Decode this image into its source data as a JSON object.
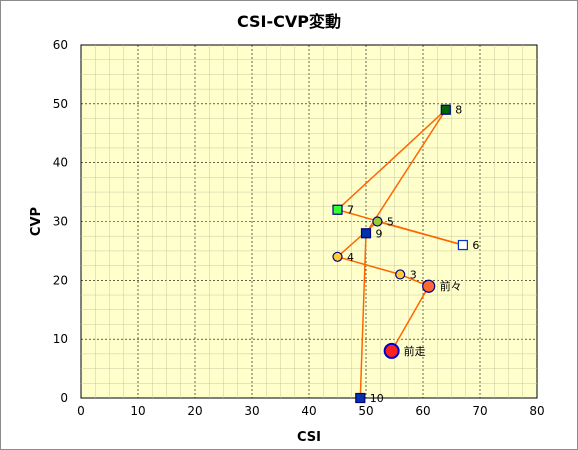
{
  "chart_data": {
    "type": "scatter",
    "title": "CSI-CVP変動",
    "xlabel": "CSI",
    "ylabel": "CVP",
    "xlim": [
      0,
      80
    ],
    "ylim": [
      0,
      60
    ],
    "xticks": [
      0,
      10,
      20,
      30,
      40,
      50,
      60,
      70,
      80
    ],
    "yticks": [
      0,
      10,
      20,
      30,
      40,
      50,
      60
    ],
    "grid": true,
    "plot_background": "#ffffcc",
    "line_color": "#ff6600",
    "points": [
      {
        "label": "前走",
        "x": 54.5,
        "y": 8,
        "shape": "circle",
        "size": "large",
        "fill": "#ff2020",
        "stroke": "#0000cc"
      },
      {
        "label": "前々",
        "x": 61,
        "y": 19,
        "shape": "circle",
        "size": "medium",
        "fill": "#ff6633",
        "stroke": "#000080"
      },
      {
        "label": "3",
        "x": 56,
        "y": 21,
        "shape": "circle",
        "size": "small",
        "fill": "#ffcc33",
        "stroke": "#000080"
      },
      {
        "label": "4",
        "x": 45,
        "y": 24,
        "shape": "circle",
        "size": "small",
        "fill": "#ffcc33",
        "stroke": "#000080"
      },
      {
        "label": "5",
        "x": 52,
        "y": 30,
        "shape": "circle",
        "size": "small",
        "fill": "#99cc33",
        "stroke": "#000080"
      },
      {
        "label": "6",
        "x": 67,
        "y": 26,
        "shape": "square",
        "size": "small",
        "fill": "#ffffff",
        "stroke": "#0033cc"
      },
      {
        "label": "7",
        "x": 45,
        "y": 32,
        "shape": "square",
        "size": "small",
        "fill": "#33ff33",
        "stroke": "#000080"
      },
      {
        "label": "8",
        "x": 64,
        "y": 49,
        "shape": "square",
        "size": "small",
        "fill": "#006600",
        "stroke": "#000080"
      },
      {
        "label": "9",
        "x": 50,
        "y": 28,
        "shape": "square",
        "size": "small",
        "fill": "#0033aa",
        "stroke": "#000080"
      },
      {
        "label": "10",
        "x": 49,
        "y": 0,
        "shape": "square",
        "size": "small",
        "fill": "#0033aa",
        "stroke": "#000080"
      }
    ]
  }
}
